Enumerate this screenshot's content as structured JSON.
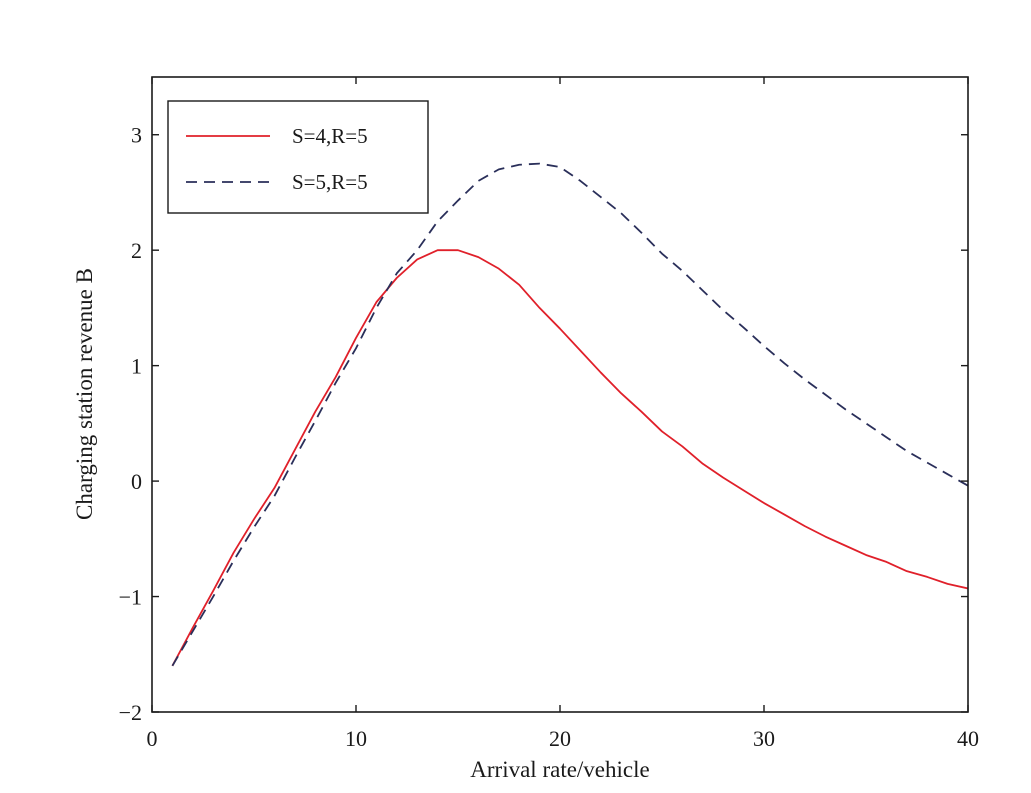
{
  "chart_data": {
    "type": "line",
    "xlabel": "Arrival rate/vehicle",
    "ylabel": "Charging station revenue B",
    "xlim": [
      0,
      40
    ],
    "ylim": [
      -2,
      3.5
    ],
    "xticks": [
      0,
      10,
      20,
      30,
      40
    ],
    "xtick_labels": [
      "0",
      "10",
      "20",
      "30",
      "40"
    ],
    "yticks": [
      -2,
      -1,
      0,
      1,
      2,
      3
    ],
    "ytick_labels": [
      "−2",
      "−1",
      "0",
      "1",
      "2",
      "3"
    ],
    "grid": false,
    "legend_position": "top-left",
    "series": [
      {
        "name": "S=4,R=5",
        "color": "#e0202a",
        "dash": "solid",
        "x": [
          1,
          2,
          3,
          4,
          5,
          6,
          7,
          8,
          9,
          10,
          11,
          12,
          13,
          14,
          15,
          16,
          17,
          18,
          19,
          20,
          21,
          22,
          23,
          24,
          25,
          26,
          27,
          28,
          29,
          30,
          31,
          32,
          33,
          34,
          35,
          36,
          37,
          38,
          39,
          40
        ],
        "y": [
          -1.6,
          -1.27,
          -0.95,
          -0.62,
          -0.33,
          -0.06,
          0.27,
          0.6,
          0.9,
          1.24,
          1.55,
          1.76,
          1.92,
          2.0,
          2.0,
          1.94,
          1.84,
          1.7,
          1.5,
          1.32,
          1.13,
          0.94,
          0.76,
          0.6,
          0.43,
          0.3,
          0.15,
          0.03,
          -0.08,
          -0.19,
          -0.29,
          -0.39,
          -0.48,
          -0.56,
          -0.64,
          -0.7,
          -0.78,
          -0.83,
          -0.89,
          -0.93
        ]
      },
      {
        "name": "S=5,R=5",
        "color": "#2a2f5a",
        "dash": "dashed",
        "x": [
          1,
          2,
          3,
          4,
          5,
          6,
          7,
          8,
          9,
          10,
          11,
          12,
          13,
          14,
          15,
          16,
          17,
          18,
          19,
          20,
          21,
          22,
          23,
          24,
          25,
          26,
          27,
          28,
          29,
          30,
          31,
          32,
          33,
          34,
          35,
          36,
          37,
          38,
          39,
          40
        ],
        "y": [
          -1.6,
          -1.3,
          -1.0,
          -0.69,
          -0.4,
          -0.13,
          0.2,
          0.52,
          0.85,
          1.15,
          1.5,
          1.8,
          2.0,
          2.25,
          2.43,
          2.6,
          2.7,
          2.74,
          2.75,
          2.72,
          2.6,
          2.46,
          2.32,
          2.15,
          1.97,
          1.82,
          1.65,
          1.48,
          1.33,
          1.17,
          1.02,
          0.88,
          0.75,
          0.62,
          0.5,
          0.38,
          0.26,
          0.16,
          0.06,
          -0.04
        ]
      }
    ]
  }
}
